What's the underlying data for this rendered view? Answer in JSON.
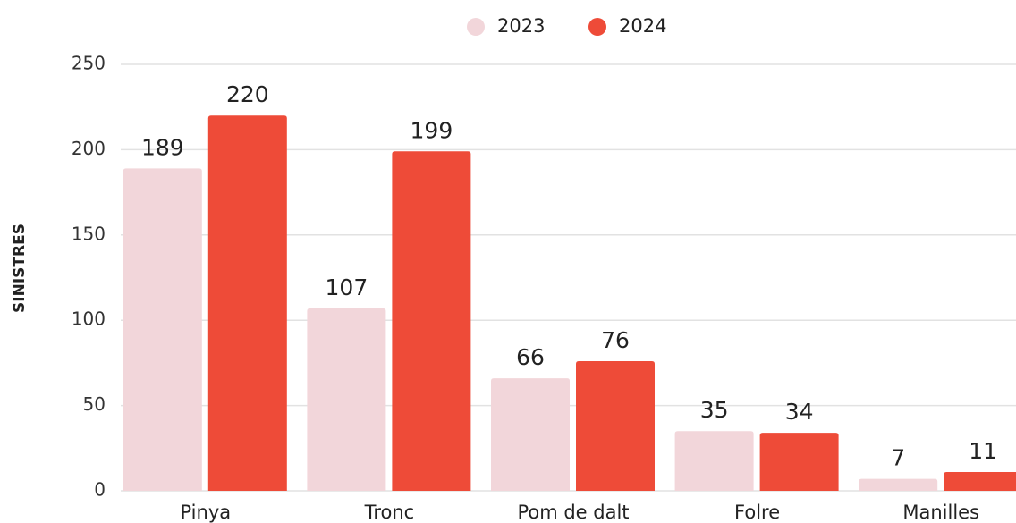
{
  "chart_data": {
    "type": "bar",
    "y_label": "SINISTRES",
    "categories": [
      "Pinya",
      "Tronc",
      "Pom de dalt",
      "Folre",
      "Manilles"
    ],
    "series": [
      {
        "name": "2023",
        "color": "#f2d6da",
        "values": [
          189,
          107,
          66,
          35,
          7
        ]
      },
      {
        "name": "2024",
        "color": "#ee4b38",
        "values": [
          220,
          199,
          76,
          34,
          11
        ]
      }
    ],
    "ylim": [
      0,
      250
    ],
    "yticks": [
      0,
      50,
      100,
      150,
      200,
      250
    ],
    "grid": true,
    "legend": "top"
  }
}
